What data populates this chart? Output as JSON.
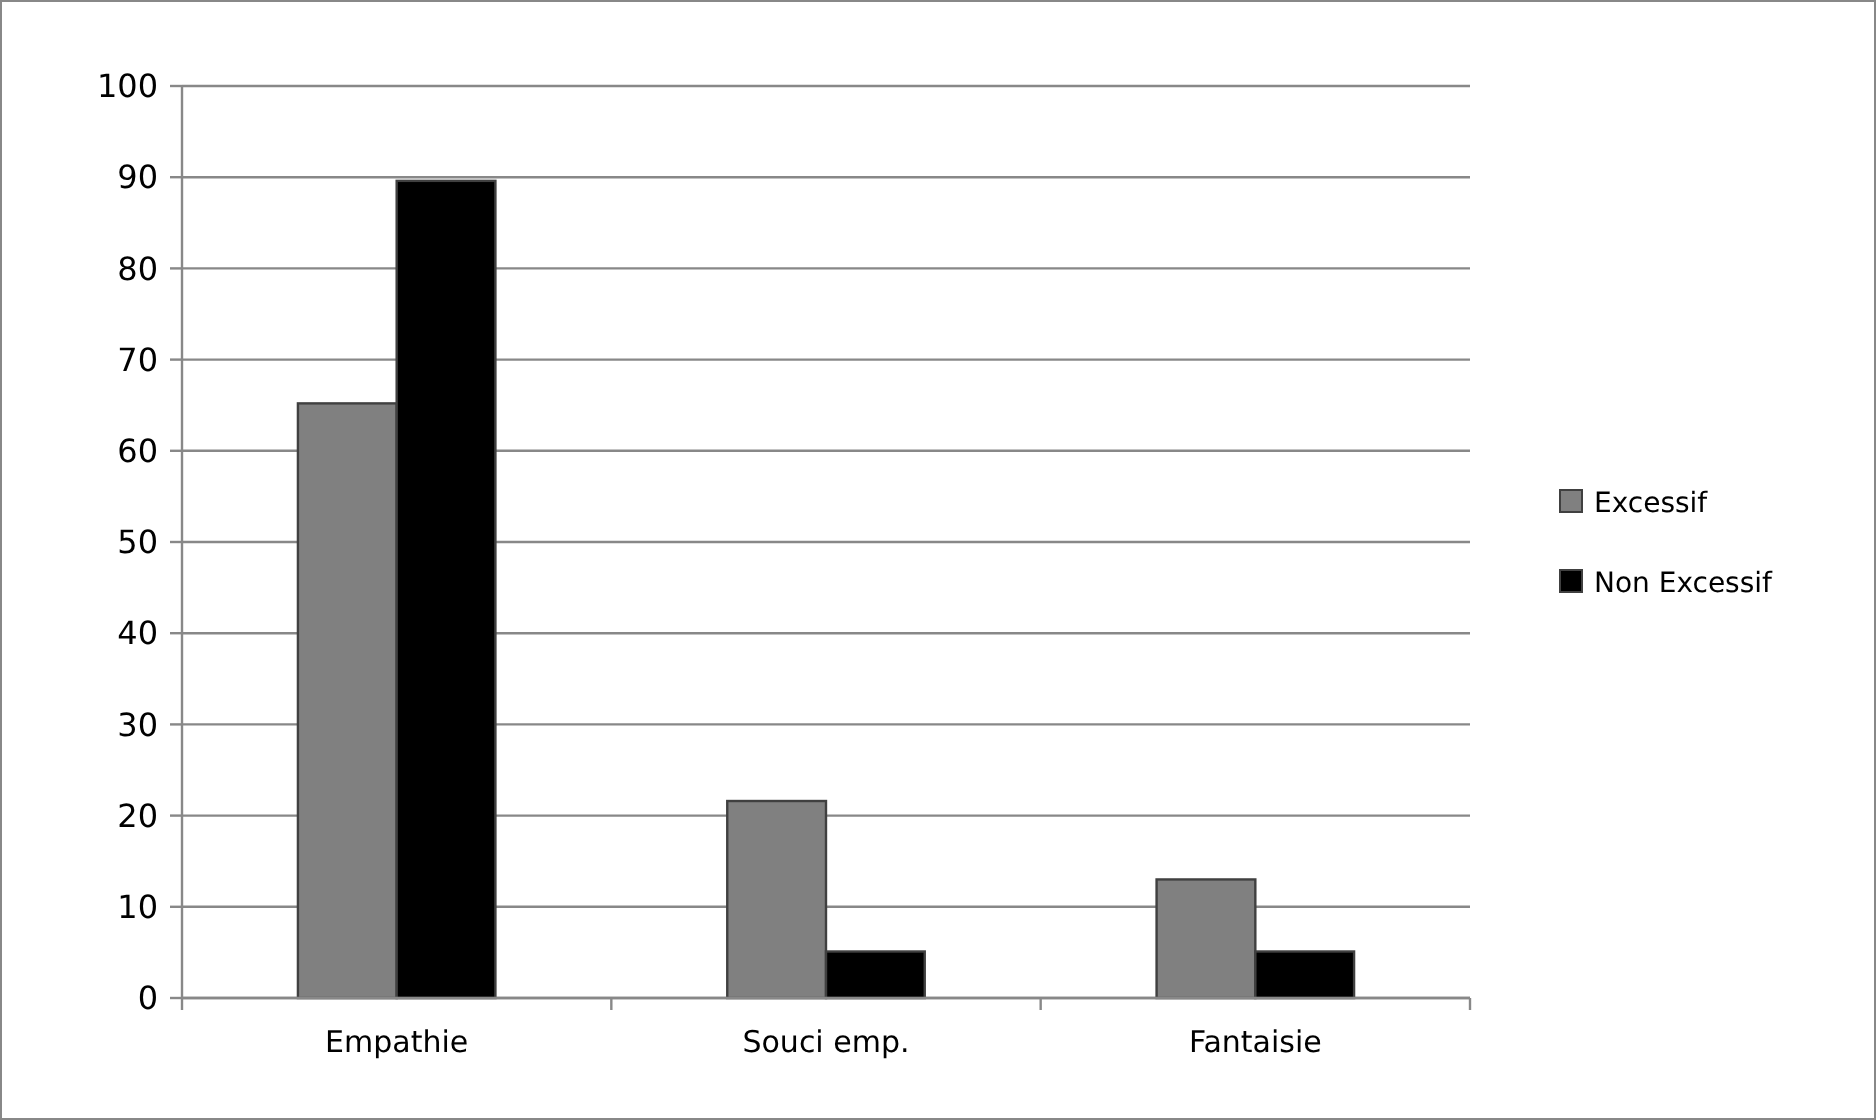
{
  "chart_data": {
    "type": "bar",
    "categories": [
      "Empathie",
      "Souci emp.",
      "Fantaisie"
    ],
    "series": [
      {
        "name": "Excessif",
        "color": "#808080",
        "values": [
          65.2,
          21.6,
          13
        ]
      },
      {
        "name": "Non Excessif",
        "color": "#000000",
        "values": [
          89.6,
          5.1,
          5.1
        ]
      }
    ],
    "ylim": [
      0,
      100
    ],
    "yticks": [
      0,
      10,
      20,
      30,
      40,
      50,
      60,
      70,
      80,
      90,
      100
    ],
    "grid": "y",
    "legend": "right"
  }
}
